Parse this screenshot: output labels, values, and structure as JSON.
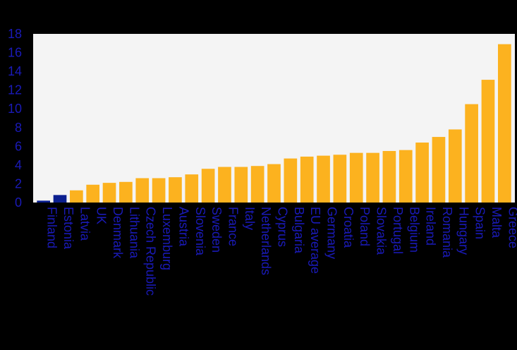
{
  "chart_data": {
    "type": "bar",
    "title": "",
    "xlabel": "",
    "ylabel": "",
    "ylim": [
      0,
      18
    ],
    "yticks": [
      0,
      2,
      4,
      6,
      8,
      10,
      12,
      14,
      16,
      18
    ],
    "grid": false,
    "legend": "none",
    "categories": [
      "Finland",
      "Estonia",
      "Latvia",
      "UK",
      "Denmark",
      "Lithuania",
      "Czech Republic",
      "Luxemburg",
      "Austria",
      "Slovenia",
      "Sweden",
      "France",
      "Italy",
      "Netherlands",
      "Cyprus",
      "Bulgaria",
      "EU average",
      "Germany",
      "Croatia",
      "Poland",
      "Slovakia",
      "Portugal",
      "Belgium",
      "Ireland",
      "Romania",
      "Hungary",
      "Spain",
      "Malta",
      "Greece"
    ],
    "values": [
      0.2,
      0.8,
      1.3,
      1.9,
      2.1,
      2.2,
      2.6,
      2.6,
      2.7,
      3.0,
      3.6,
      3.8,
      3.8,
      3.9,
      4.1,
      4.7,
      4.9,
      5.0,
      5.1,
      5.3,
      5.3,
      5.5,
      5.6,
      6.4,
      7.0,
      7.8,
      10.5,
      13.1,
      16.9
    ],
    "bar_colors": [
      "#0b1f8f",
      "#0b1f8f",
      "#fcb21f",
      "#fcb21f",
      "#fcb21f",
      "#fcb21f",
      "#fcb21f",
      "#fcb21f",
      "#fcb21f",
      "#fcb21f",
      "#fcb21f",
      "#fcb21f",
      "#fcb21f",
      "#fcb21f",
      "#fcb21f",
      "#fcb21f",
      "#fcb21f",
      "#fcb21f",
      "#fcb21f",
      "#fcb21f",
      "#fcb21f",
      "#fcb21f",
      "#fcb21f",
      "#fcb21f",
      "#fcb21f",
      "#fcb21f",
      "#fcb21f",
      "#fcb21f",
      "#fcb21f"
    ],
    "colors": {
      "background": "#000000",
      "plot_area": "#f4f4f4",
      "text": "#1a1ab8"
    }
  }
}
